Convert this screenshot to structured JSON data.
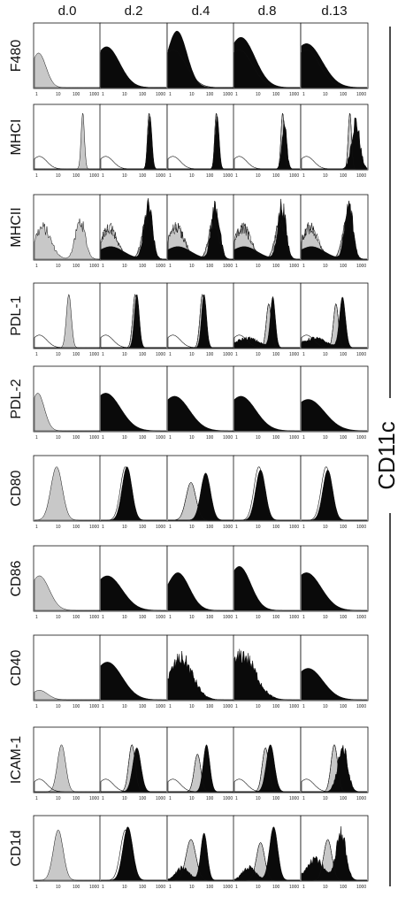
{
  "chart_data": {
    "type": "histogram-grid",
    "columns": [
      "d.0",
      "d.2",
      "d.4",
      "d.8",
      "d.13"
    ],
    "rows": [
      "F480",
      "MHCI",
      "MHCII",
      "PDL-1",
      "PDL-2",
      "CD80",
      "CD86",
      "CD40",
      "ICAM-1",
      "CD1d"
    ],
    "side_label": "CD11c",
    "x_ticks": [
      "1",
      "10",
      "100",
      "1000"
    ],
    "x_scale": "log",
    "xlim": [
      1,
      10000
    ],
    "colors": {
      "control_fill": "#c8c8c8",
      "sample_fill": "#0a0a0a",
      "outline": "#111111",
      "frame": "#111111"
    },
    "profiles": {
      "F480": [
        {
          "g": [
            [
              0.25,
              0.45,
              0.55,
              0
            ]
          ]
        },
        {
          "g": [
            [
              0.3,
              0.8,
              0.6,
              0
            ]
          ],
          "b": [
            [
              0.35,
              0.8,
              0.65,
              0
            ]
          ]
        },
        {
          "g": [
            [
              0.3,
              0.8,
              0.6,
              0
            ]
          ],
          "b": [
            [
              0.55,
              0.6,
              0.9,
              0
            ]
          ]
        },
        {
          "g": [
            [
              0.3,
              0.8,
              0.6,
              0
            ]
          ],
          "b": [
            [
              0.4,
              0.85,
              0.8,
              0
            ]
          ]
        },
        {
          "g": [
            [
              0.3,
              0.8,
              0.6,
              0
            ]
          ],
          "b": [
            [
              0.3,
              0.95,
              0.7,
              0
            ]
          ]
        }
      ],
      "MHCI": [
        {
          "o": [
            [
              0.3,
              0.45,
              0.2,
              0
            ]
          ],
          "g": [
            [
              2.95,
              0.1,
              0.9,
              0
            ]
          ]
        },
        {
          "o": [
            [
              0.3,
              0.45,
              0.2,
              0
            ]
          ],
          "g": [
            [
              2.95,
              0.1,
              0.9,
              0
            ]
          ],
          "b": [
            [
              3.0,
              0.12,
              0.85,
              0
            ]
          ]
        },
        {
          "o": [
            [
              0.3,
              0.45,
              0.2,
              0
            ]
          ],
          "g": [
            [
              2.95,
              0.1,
              0.9,
              0
            ]
          ],
          "b": [
            [
              3.0,
              0.12,
              0.85,
              0
            ]
          ]
        },
        {
          "o": [
            [
              0.3,
              0.45,
              0.2,
              0
            ]
          ],
          "g": [
            [
              2.95,
              0.1,
              0.9,
              0
            ]
          ],
          "b": [
            [
              3.05,
              0.15,
              0.7,
              1
            ]
          ]
        },
        {
          "o": [
            [
              0.3,
              0.45,
              0.2,
              0
            ]
          ],
          "g": [
            [
              2.95,
              0.1,
              0.9,
              0
            ]
          ],
          "b": [
            [
              3.3,
              0.25,
              0.75,
              1
            ]
          ]
        }
      ],
      "MHCII": [
        {
          "g": [
            [
              0.5,
              0.5,
              0.5,
              1
            ],
            [
              2.8,
              0.3,
              0.6,
              1
            ]
          ]
        },
        {
          "g": [
            [
              0.5,
              0.5,
              0.5,
              1
            ],
            [
              2.8,
              0.3,
              0.6,
              1
            ]
          ],
          "b": [
            [
              0.6,
              0.8,
              0.2,
              0
            ],
            [
              2.9,
              0.25,
              0.85,
              1
            ]
          ]
        },
        {
          "g": [
            [
              0.5,
              0.5,
              0.5,
              1
            ],
            [
              2.8,
              0.3,
              0.6,
              1
            ]
          ],
          "b": [
            [
              0.6,
              0.8,
              0.2,
              0
            ],
            [
              2.9,
              0.25,
              0.85,
              1
            ]
          ]
        },
        {
          "g": [
            [
              0.5,
              0.5,
              0.5,
              1
            ],
            [
              2.8,
              0.3,
              0.6,
              1
            ]
          ],
          "b": [
            [
              0.6,
              0.8,
              0.2,
              0
            ],
            [
              2.9,
              0.25,
              0.85,
              1
            ]
          ]
        },
        {
          "g": [
            [
              0.5,
              0.5,
              0.5,
              1
            ],
            [
              2.8,
              0.3,
              0.6,
              1
            ]
          ],
          "b": [
            [
              0.6,
              0.8,
              0.2,
              0
            ],
            [
              2.9,
              0.25,
              0.85,
              1
            ]
          ]
        }
      ],
      "PDL-1": [
        {
          "o": [
            [
              0.3,
              0.45,
              0.2,
              0
            ]
          ],
          "g": [
            [
              2.1,
              0.15,
              0.85,
              0
            ]
          ]
        },
        {
          "o": [
            [
              0.3,
              0.45,
              0.2,
              0
            ]
          ],
          "g": [
            [
              2.1,
              0.15,
              0.85,
              0
            ]
          ],
          "b": [
            [
              2.2,
              0.15,
              0.85,
              0
            ]
          ]
        },
        {
          "o": [
            [
              0.3,
              0.45,
              0.2,
              0
            ]
          ],
          "g": [
            [
              2.1,
              0.15,
              0.85,
              0
            ]
          ],
          "b": [
            [
              2.2,
              0.15,
              0.85,
              0
            ]
          ]
        },
        {
          "o": [
            [
              0.3,
              0.45,
              0.2,
              0
            ]
          ],
          "g": [
            [
              2.1,
              0.15,
              0.7,
              0
            ]
          ],
          "b": [
            [
              0.8,
              0.7,
              0.15,
              1
            ],
            [
              2.35,
              0.15,
              0.8,
              0
            ]
          ]
        },
        {
          "o": [
            [
              0.3,
              0.45,
              0.2,
              0
            ]
          ],
          "g": [
            [
              2.1,
              0.15,
              0.7,
              0
            ]
          ],
          "b": [
            [
              0.8,
              0.7,
              0.15,
              1
            ],
            [
              2.5,
              0.18,
              0.8,
              0
            ]
          ]
        }
      ],
      "PDL-2": [
        {
          "g": [
            [
              0.2,
              0.4,
              0.6,
              0
            ]
          ]
        },
        {
          "b": [
            [
              0.3,
              0.9,
              0.6,
              0
            ]
          ]
        },
        {
          "b": [
            [
              0.4,
              0.9,
              0.55,
              0
            ]
          ]
        },
        {
          "b": [
            [
              0.4,
              0.9,
              0.55,
              0
            ]
          ]
        },
        {
          "b": [
            [
              0.4,
              1.0,
              0.5,
              0
            ]
          ]
        }
      ],
      "CD80": [
        {
          "g": [
            [
              1.35,
              0.35,
              0.85,
              0
            ]
          ]
        },
        {
          "o": [
            [
              1.5,
              0.3,
              0.85,
              0
            ]
          ],
          "b": [
            [
              1.6,
              0.3,
              0.85,
              0
            ]
          ]
        },
        {
          "g": [
            [
              1.4,
              0.3,
              0.6,
              0
            ]
          ],
          "b": [
            [
              2.3,
              0.3,
              0.75,
              0
            ]
          ]
        },
        {
          "o": [
            [
              1.5,
              0.3,
              0.85,
              0
            ]
          ],
          "b": [
            [
              1.6,
              0.3,
              0.8,
              0
            ]
          ]
        },
        {
          "o": [
            [
              1.5,
              0.3,
              0.85,
              0
            ]
          ],
          "b": [
            [
              1.6,
              0.3,
              0.8,
              0
            ]
          ]
        }
      ],
      "CD86": [
        {
          "g": [
            [
              0.3,
              0.6,
              0.55,
              0
            ]
          ]
        },
        {
          "b": [
            [
              0.4,
              0.9,
              0.55,
              0
            ]
          ]
        },
        {
          "b": [
            [
              0.6,
              0.7,
              0.6,
              0
            ]
          ]
        },
        {
          "b": [
            [
              0.3,
              0.7,
              0.7,
              0
            ]
          ]
        },
        {
          "b": [
            [
              0.3,
              0.9,
              0.6,
              0
            ]
          ]
        }
      ],
      "CD40": [
        {
          "g": [
            [
              0.3,
              0.5,
              0.15,
              0
            ]
          ]
        },
        {
          "b": [
            [
              0.4,
              0.9,
              0.6,
              0
            ]
          ]
        },
        {
          "b": [
            [
              0.8,
              0.7,
              0.65,
              1
            ]
          ]
        },
        {
          "b": [
            [
              0.5,
              0.8,
              0.7,
              1
            ]
          ]
        },
        {
          "b": [
            [
              0.4,
              0.9,
              0.5,
              0
            ]
          ]
        }
      ],
      "ICAM-1": [
        {
          "o": [
            [
              0.3,
              0.45,
              0.2,
              0
            ]
          ],
          "g": [
            [
              1.65,
              0.25,
              0.75,
              0
            ]
          ]
        },
        {
          "o": [
            [
              0.3,
              0.45,
              0.2,
              0
            ]
          ],
          "g": [
            [
              1.9,
              0.2,
              0.75,
              0
            ]
          ],
          "b": [
            [
              2.2,
              0.25,
              0.7,
              0
            ]
          ]
        },
        {
          "o": [
            [
              0.3,
              0.45,
              0.2,
              0
            ]
          ],
          "g": [
            [
              1.8,
              0.2,
              0.6,
              0
            ]
          ],
          "b": [
            [
              2.35,
              0.2,
              0.75,
              0
            ]
          ]
        },
        {
          "o": [
            [
              0.3,
              0.45,
              0.2,
              0
            ]
          ],
          "g": [
            [
              1.9,
              0.2,
              0.7,
              0
            ]
          ],
          "b": [
            [
              2.2,
              0.25,
              0.75,
              0
            ]
          ]
        },
        {
          "o": [
            [
              0.3,
              0.45,
              0.2,
              0
            ]
          ],
          "g": [
            [
              2.0,
              0.2,
              0.75,
              0
            ]
          ],
          "b": [
            [
              2.5,
              0.3,
              0.7,
              1
            ]
          ]
        }
      ],
      "CD1d": [
        {
          "g": [
            [
              1.45,
              0.3,
              0.8,
              0
            ]
          ]
        },
        {
          "o": [
            [
              1.5,
              0.3,
              0.8,
              0
            ]
          ],
          "b": [
            [
              1.65,
              0.3,
              0.85,
              0
            ]
          ]
        },
        {
          "g": [
            [
              1.4,
              0.3,
              0.65,
              0
            ]
          ],
          "b": [
            [
              0.9,
              0.4,
              0.2,
              1
            ],
            [
              2.2,
              0.2,
              0.75,
              0
            ]
          ]
        },
        {
          "g": [
            [
              1.6,
              0.25,
              0.6,
              0
            ]
          ],
          "b": [
            [
              0.9,
              0.4,
              0.2,
              1
            ],
            [
              2.4,
              0.25,
              0.85,
              0
            ]
          ]
        },
        {
          "g": [
            [
              1.6,
              0.25,
              0.65,
              0
            ]
          ],
          "b": [
            [
              0.8,
              0.5,
              0.35,
              1
            ],
            [
              2.4,
              0.3,
              0.75,
              1
            ]
          ]
        }
      ]
    }
  }
}
